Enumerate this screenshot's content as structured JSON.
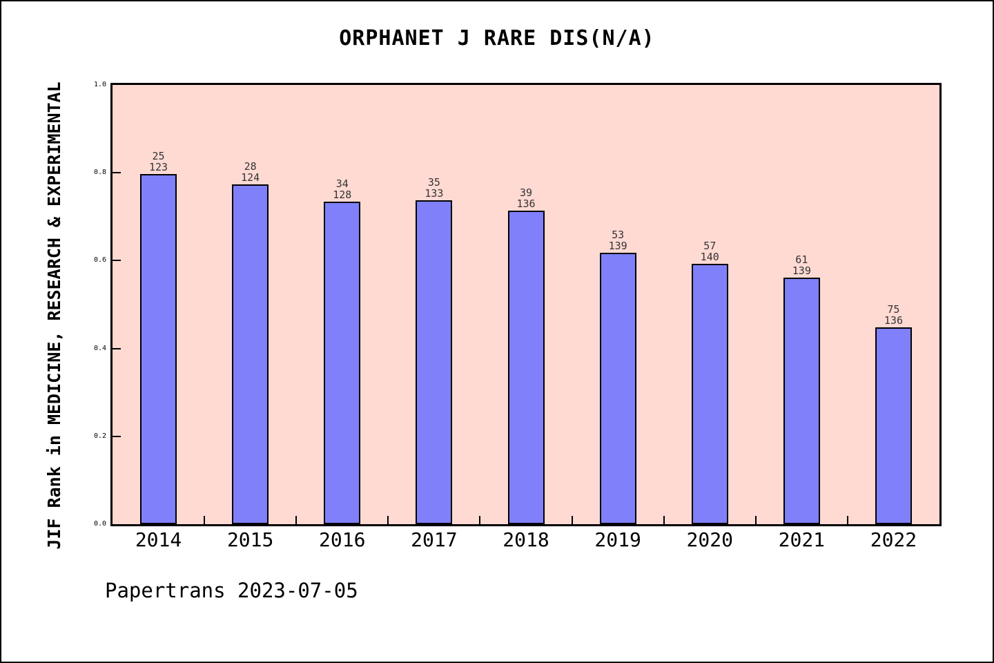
{
  "chart_data": {
    "type": "bar",
    "title": "ORPHANET J RARE DIS(N/A)",
    "xlabel": "",
    "ylabel": "JIF Rank in MEDICINE, RESEARCH & EXPERIMENTAL",
    "ylim": [
      0.0,
      1.0
    ],
    "ytick_labels": [
      "0.0",
      "0.2",
      "0.4",
      "0.6",
      "0.8",
      "1.0"
    ],
    "grid": false,
    "legend": false,
    "categories": [
      "2014",
      "2015",
      "2016",
      "2017",
      "2018",
      "2019",
      "2020",
      "2021",
      "2022"
    ],
    "values": [
      0.7967,
      0.7742,
      0.7344,
      0.7368,
      0.7132,
      0.6187,
      0.5929,
      0.5612,
      0.4485
    ],
    "bar_labels": [
      [
        "25",
        "123"
      ],
      [
        "28",
        "124"
      ],
      [
        "34",
        "128"
      ],
      [
        "35",
        "133"
      ],
      [
        "39",
        "136"
      ],
      [
        "53",
        "139"
      ],
      [
        "57",
        "140"
      ],
      [
        "61",
        "139"
      ],
      [
        "75",
        "136"
      ]
    ],
    "rank": [
      25,
      28,
      34,
      35,
      39,
      53,
      57,
      61,
      75
    ],
    "total": [
      123,
      124,
      128,
      133,
      136,
      139,
      140,
      139,
      136
    ],
    "colors": {
      "bar_fill": "#8080FA",
      "bar_edge": "#000000",
      "plot_bg": "#FFDAD3",
      "page_bg": "#FFFFFF",
      "text": "#000000",
      "bar_label_text": "#333333"
    }
  },
  "footer": {
    "text": "Papertrans 2023-07-05"
  }
}
